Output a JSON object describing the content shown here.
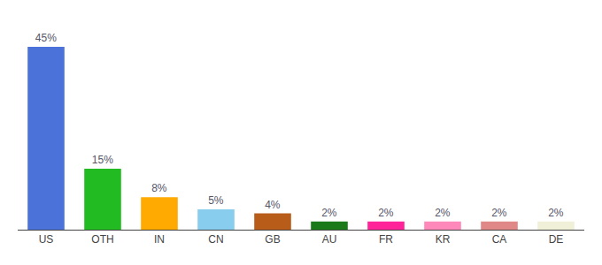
{
  "chart_data": {
    "type": "bar",
    "categories": [
      "US",
      "OTH",
      "IN",
      "CN",
      "GB",
      "AU",
      "FR",
      "KR",
      "CA",
      "DE"
    ],
    "values": [
      45,
      15,
      8,
      5,
      4,
      2,
      2,
      2,
      2,
      2
    ],
    "value_labels": [
      "45%",
      "15%",
      "8%",
      "5%",
      "4%",
      "2%",
      "2%",
      "2%",
      "2%",
      "2%"
    ],
    "data_labels": true,
    "colors": [
      "#4a72d9",
      "#22bb22",
      "#ffaa00",
      "#88ccee",
      "#b85c1a",
      "#1a7a1a",
      "#ff2299",
      "#ff88bb",
      "#e08888",
      "#f0f0d8"
    ],
    "ylim": [
      0,
      50
    ],
    "tick_labels": "x",
    "grid": false
  }
}
